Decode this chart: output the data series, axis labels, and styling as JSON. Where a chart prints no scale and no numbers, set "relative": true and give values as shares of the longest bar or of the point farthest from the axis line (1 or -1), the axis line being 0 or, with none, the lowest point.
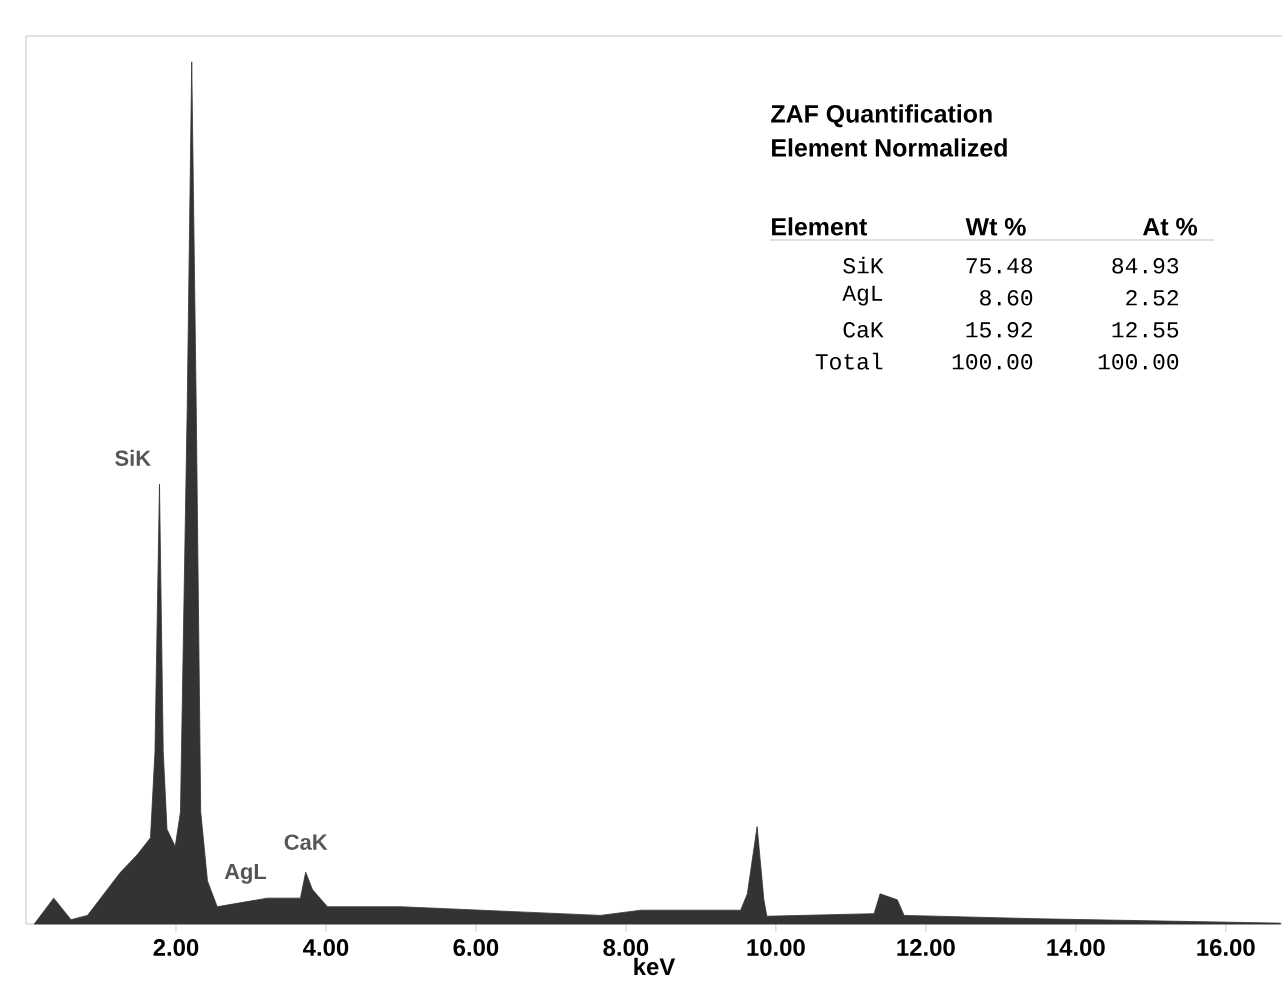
{
  "chart_data": {
    "type": "area",
    "relative": true,
    "title": "ZAF Quantification",
    "subtitle": "Element Normalized",
    "xlabel": "keV",
    "color": "#333333",
    "x": [
      0.11,
      0.37,
      0.6,
      0.82,
      1.26,
      1.48,
      1.66,
      1.72,
      1.78,
      1.83,
      1.88,
      1.99,
      2.06,
      2.15,
      2.21,
      2.27,
      2.33,
      2.42,
      2.55,
      3.22,
      3.66,
      3.73,
      3.82,
      4.02,
      5.0,
      7.66,
      8.2,
      9.53,
      9.62,
      9.75,
      9.84,
      9.88,
      11.31,
      11.39,
      11.62,
      11.71,
      13.53,
      16.73
    ],
    "values": [
      0.0,
      0.03,
      0.005,
      0.01,
      0.06,
      0.08,
      0.1,
      0.2,
      0.51,
      0.2,
      0.11,
      0.09,
      0.13,
      0.6,
      1.0,
      0.6,
      0.13,
      0.05,
      0.02,
      0.03,
      0.03,
      0.06,
      0.04,
      0.02,
      0.02,
      0.01,
      0.016,
      0.016,
      0.035,
      0.113,
      0.028,
      0.009,
      0.012,
      0.035,
      0.028,
      0.01,
      0.006,
      0.001
    ],
    "xlim": [
      0,
      16.75
    ],
    "xticks": [
      {
        "value": 2,
        "label": "2.00"
      },
      {
        "value": 4,
        "label": "4.00"
      },
      {
        "value": 6,
        "label": "6.00"
      },
      {
        "value": 8,
        "label": "8.00"
      },
      {
        "value": 10,
        "label": "10.00"
      },
      {
        "value": 12,
        "label": "12.00"
      },
      {
        "value": 14,
        "label": "14.00"
      },
      {
        "value": 16,
        "label": "16.00"
      }
    ],
    "annotations": [
      {
        "text": "SiK",
        "x": 1.78,
        "y": 0.51
      },
      {
        "text": "AgL",
        "x": 2.98,
        "y": 0.03
      },
      {
        "text": "CaK",
        "x": 3.73,
        "y": 0.06
      },
      "Element",
      "Wt %",
      "At %",
      "SiK",
      "75.48",
      "84.93",
      "AgL",
      "8.60",
      "2.52",
      "CaK",
      "15.92",
      "12.55",
      "Total",
      "100.00",
      "100.00"
    ]
  }
}
